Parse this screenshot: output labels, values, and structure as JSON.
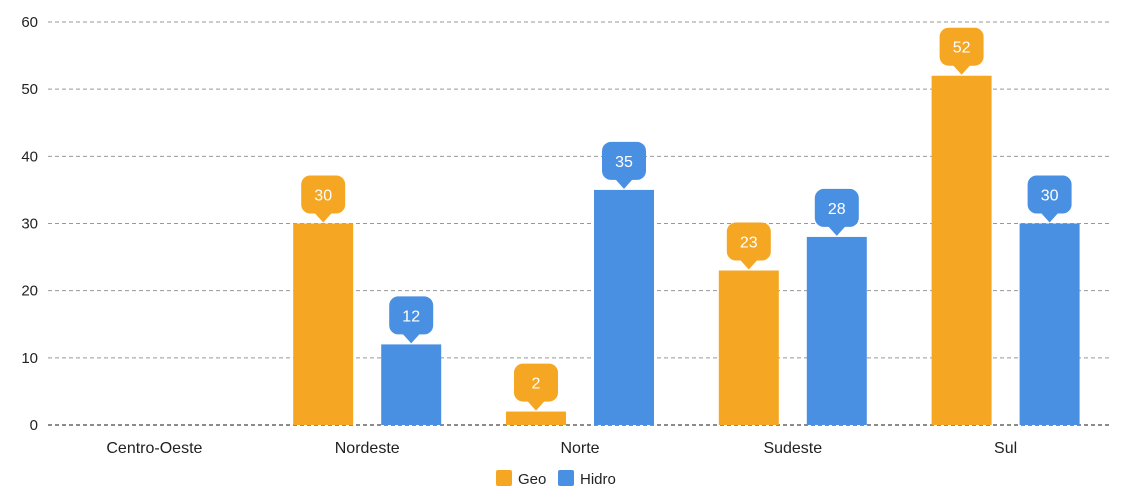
{
  "chart_data": {
    "type": "bar",
    "categories": [
      "Centro-Oeste",
      "Nordeste",
      "Norte",
      "Sudeste",
      "Sul"
    ],
    "series": [
      {
        "name": "Geo",
        "values": [
          0,
          30,
          2,
          23,
          52
        ],
        "color": "#F5A623"
      },
      {
        "name": "Hidro",
        "values": [
          0,
          12,
          35,
          28,
          30
        ],
        "color": "#4A90E2"
      }
    ],
    "data_labels": [
      [
        null,
        "30",
        "2",
        "23",
        "52"
      ],
      [
        null,
        "12",
        "35",
        "28",
        "30"
      ]
    ],
    "title": "",
    "xlabel": "",
    "ylabel": "",
    "ylim": [
      0,
      60
    ],
    "yticks": [
      "0",
      "10",
      "20",
      "30",
      "40",
      "50",
      "60"
    ],
    "grid": true,
    "legend_position": "bottom-center",
    "data_label_text_color": "#ffffff",
    "axis_text_color": "#222222",
    "grid_color": "#999999"
  }
}
